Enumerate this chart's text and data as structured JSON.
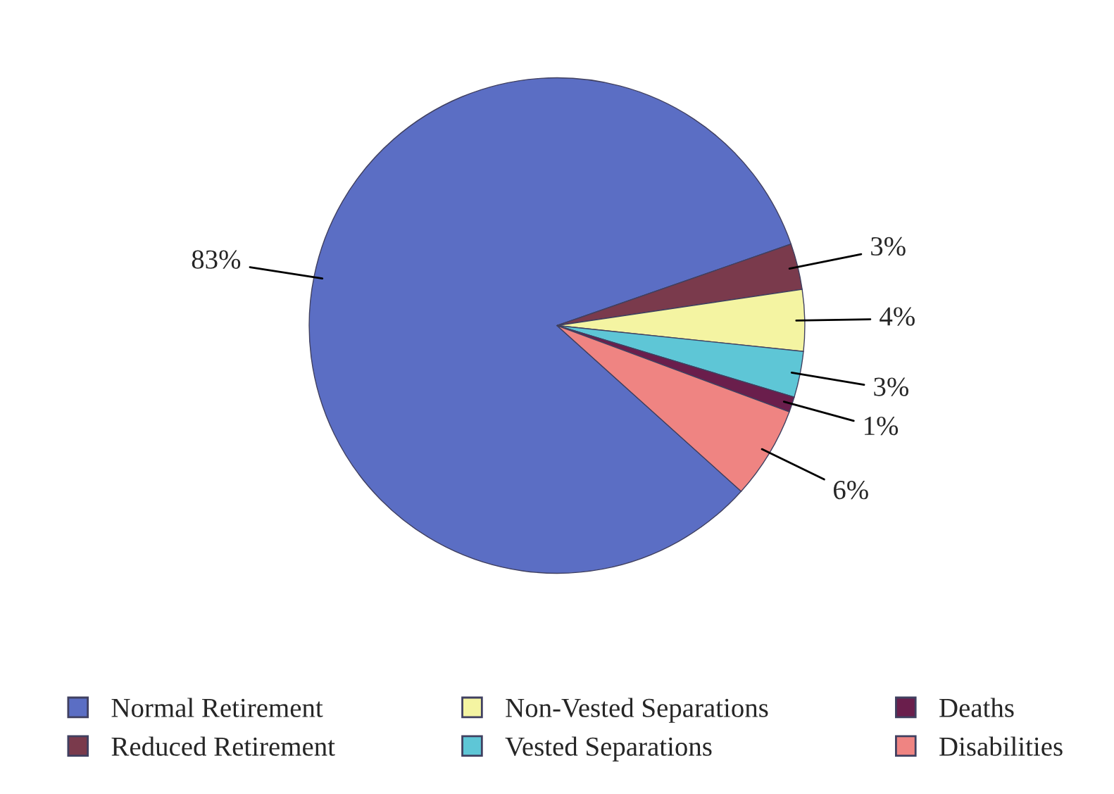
{
  "chart_data": {
    "type": "pie",
    "categories": [
      "Normal Retirement",
      "Reduced Retirement",
      "Non-Vested Separations",
      "Vested Separations",
      "Deaths",
      "Disabilities"
    ],
    "values": [
      83,
      3,
      4,
      3,
      1,
      6
    ],
    "value_labels": [
      "83%",
      "3%",
      "4%",
      "3%",
      "1%",
      "6%"
    ],
    "colors": [
      "#5b6ec4",
      "#7a3a4c",
      "#f4f4a2",
      "#5ec6d6",
      "#6a1e4c",
      "#ef8482"
    ],
    "legend": "bottom"
  }
}
